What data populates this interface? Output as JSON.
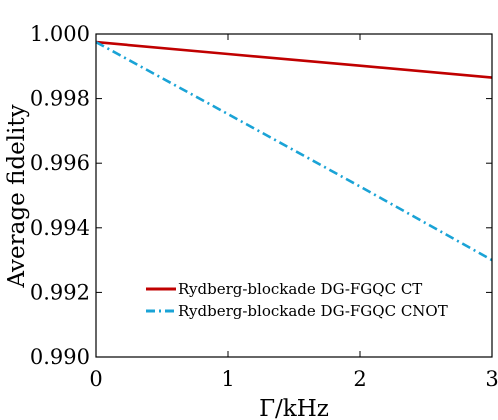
{
  "chart_data": {
    "type": "line",
    "title": "",
    "xlabel": "Γ/kHz",
    "ylabel": "Average fidelity",
    "xlim": [
      0,
      3
    ],
    "ylim": [
      0.99,
      1.0
    ],
    "x_ticks": [
      "0",
      "1",
      "2",
      "3"
    ],
    "y_ticks": [
      "0.990",
      "0.992",
      "0.994",
      "0.996",
      "0.998",
      "1.000"
    ],
    "grid": false,
    "legend_position": "bottom-right",
    "series": [
      {
        "name": "Rydberg-blockade DG-FGQC CT",
        "color": "#c00000",
        "line_style": "solid",
        "x": [
          0,
          1,
          2,
          3
        ],
        "y": [
          0.99975,
          0.99938,
          0.99902,
          0.99865
        ]
      },
      {
        "name": "Rydberg-blockade DG-FGQC CNOT",
        "color": "#1aa3d6",
        "line_style": "dash-dot",
        "x": [
          0,
          1,
          2,
          3
        ],
        "y": [
          0.99975,
          0.99752,
          0.99528,
          0.993
        ]
      }
    ]
  }
}
